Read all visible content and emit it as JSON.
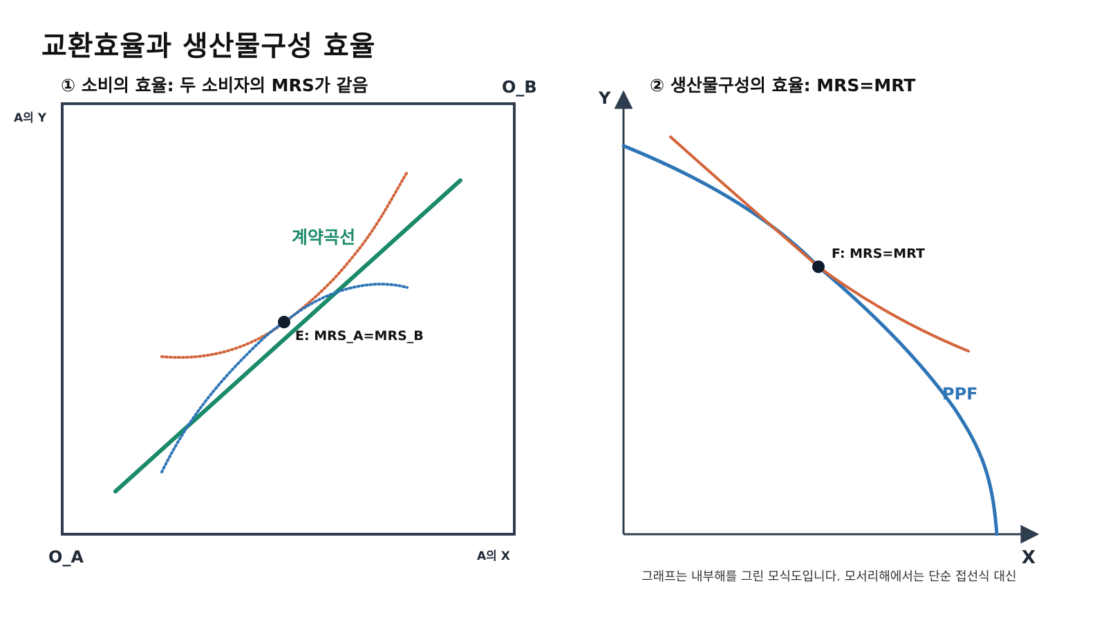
{
  "title": "교환효율과 생산물구성 효율",
  "panel1": {
    "subtitle": "① 소비의 효율: 두 소비자의 MRS가 같음",
    "corner_ob": "O_B",
    "corner_oa": "O_A",
    "axis_y": "A의 Y",
    "axis_x": "A의 X",
    "contract_curve_label": "계약곡선",
    "point_label": "E: MRS_A=MRS_B"
  },
  "panel2": {
    "subtitle": "② 생산물구성의 효율: MRS=MRT",
    "axis_y": "Y",
    "axis_x": "X",
    "point_label": "F: MRS=MRT",
    "ppf_label": "PPF"
  },
  "footnote": "그래프는 내부해를 그린 모식도입니다. 모서리해에서는 단순 접선식 대신",
  "colors": {
    "frame": "#2f3e4e",
    "contract": "#1a8a6a",
    "orange": "#d3643a",
    "blue": "#2e75b6",
    "point": "#0d1b2a"
  }
}
